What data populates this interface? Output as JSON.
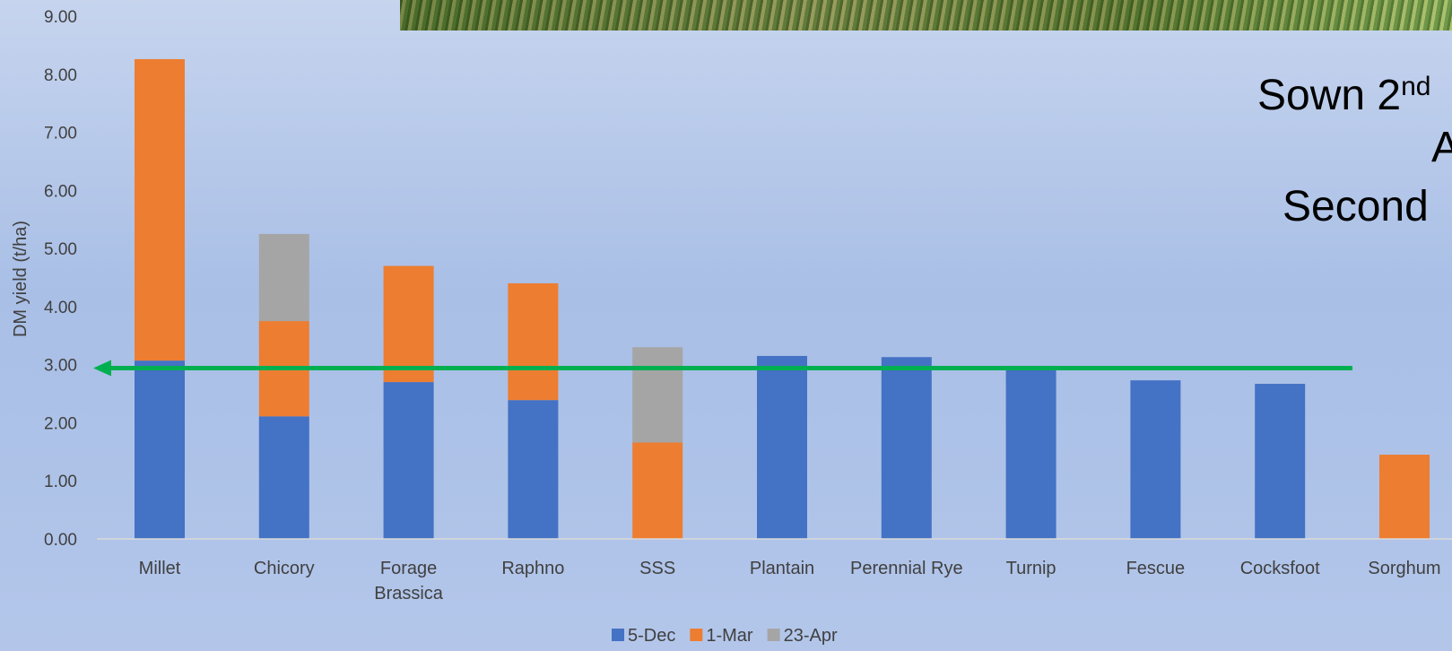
{
  "chart_data": {
    "type": "bar",
    "stacked": true,
    "ylabel": "DM yield (t/ha)",
    "ylim": [
      0,
      9
    ],
    "yticks": [
      "0.00",
      "1.00",
      "2.00",
      "3.00",
      "4.00",
      "5.00",
      "6.00",
      "7.00",
      "8.00",
      "9.00"
    ],
    "categories": [
      [
        "Millet"
      ],
      [
        "Chicory"
      ],
      [
        "Forage",
        "Brassica"
      ],
      [
        "Raphno"
      ],
      [
        "SSS"
      ],
      [
        "Plantain"
      ],
      [
        "Perennial Rye"
      ],
      [
        "Turnip"
      ],
      [
        "Fescue"
      ],
      [
        "Cocksfoot"
      ],
      [
        "Sorghum"
      ]
    ],
    "series": [
      {
        "name": "5-Dec",
        "color": "#4472c4",
        "values": [
          3.07,
          2.11,
          2.7,
          2.39,
          0,
          3.15,
          3.13,
          2.98,
          2.73,
          2.67,
          0
        ]
      },
      {
        "name": "1-Mar",
        "color": "#ed7d31",
        "values": [
          5.19,
          1.64,
          2.0,
          2.01,
          1.66,
          0,
          0,
          0,
          0,
          0,
          1.45
        ]
      },
      {
        "name": "23-Apr",
        "color": "#a5a5a5",
        "values": [
          0,
          1.5,
          0,
          0,
          1.64,
          0,
          0,
          0,
          0,
          0,
          0
        ]
      }
    ],
    "reference_line": {
      "value": 2.94,
      "color": "#00b050"
    },
    "legend_position": "bottom",
    "grid": false
  },
  "overlay_text": {
    "line1_main": "Sown 2",
    "line1_sup": "nd",
    "line2": "A",
    "line3": "Second "
  }
}
